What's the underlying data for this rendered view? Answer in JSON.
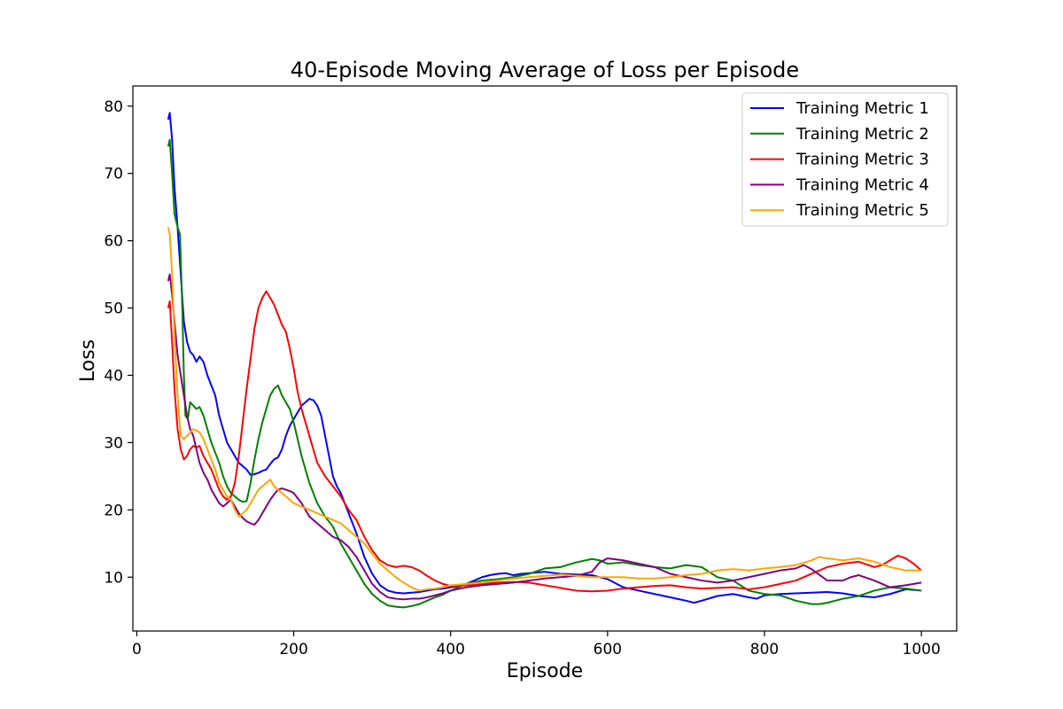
{
  "chart_data": {
    "type": "line",
    "title": "40-Episode Moving Average of Loss per Episode",
    "xlabel": "Episode",
    "ylabel": "Loss",
    "xlim": [
      -5,
      1045
    ],
    "ylim": [
      2,
      83
    ],
    "x_ticks": [
      0,
      200,
      400,
      600,
      800,
      1000
    ],
    "y_ticks": [
      10,
      20,
      30,
      40,
      50,
      60,
      70,
      80
    ],
    "grid": false,
    "legend_position": "top-right",
    "series": [
      {
        "name": "Training Metric 1",
        "color": "#0000ff",
        "x": [
          40,
          42,
          45,
          48,
          52,
          56,
          60,
          64,
          68,
          72,
          76,
          80,
          85,
          90,
          95,
          100,
          105,
          110,
          115,
          120,
          125,
          130,
          135,
          140,
          145,
          150,
          155,
          160,
          165,
          170,
          175,
          180,
          185,
          190,
          195,
          200,
          205,
          210,
          215,
          220,
          225,
          230,
          235,
          240,
          245,
          250,
          255,
          260,
          265,
          270,
          280,
          290,
          300,
          310,
          320,
          330,
          340,
          350,
          360,
          370,
          380,
          390,
          400,
          410,
          420,
          430,
          440,
          450,
          460,
          470,
          480,
          490,
          500,
          520,
          540,
          560,
          580,
          600,
          620,
          640,
          660,
          680,
          700,
          710,
          720,
          740,
          760,
          780,
          790,
          800,
          820,
          840,
          860,
          880,
          900,
          920,
          940,
          960,
          980,
          1000
        ],
        "values": [
          78,
          79,
          75,
          68,
          62,
          55,
          48,
          45,
          43.5,
          43,
          42,
          42.8,
          42,
          40,
          38.5,
          37,
          34,
          32,
          30,
          29,
          28,
          27,
          26.5,
          26,
          25.2,
          25.3,
          25.5,
          25.8,
          26,
          26.8,
          27.5,
          27.8,
          29,
          31,
          32.5,
          33.5,
          34.5,
          35.5,
          36,
          36.5,
          36.3,
          35.5,
          34,
          31,
          28,
          25,
          23.5,
          22.5,
          21,
          19.5,
          16.5,
          13,
          10.5,
          8.8,
          8,
          7.7,
          7.6,
          7.7,
          7.8,
          8,
          8.2,
          8.3,
          8.5,
          8.7,
          9,
          9.5,
          10,
          10.3,
          10.5,
          10.6,
          10.3,
          10.5,
          10.6,
          10.8,
          10.5,
          10.4,
          10.3,
          9.7,
          8.5,
          8,
          7.5,
          7,
          6.5,
          6.2,
          6.5,
          7.2,
          7.5,
          7,
          6.8,
          7.3,
          7.5,
          7.6,
          7.7,
          7.8,
          7.6,
          7.2,
          7,
          7.5,
          8.2,
          8
        ]
      },
      {
        "name": "Training Metric 2",
        "color": "#008000",
        "x": [
          40,
          42,
          45,
          48,
          52,
          55,
          58,
          60,
          62,
          65,
          68,
          72,
          76,
          80,
          85,
          90,
          95,
          100,
          105,
          110,
          115,
          120,
          125,
          130,
          135,
          140,
          145,
          150,
          155,
          160,
          165,
          170,
          175,
          180,
          185,
          190,
          195,
          200,
          210,
          220,
          230,
          240,
          250,
          260,
          270,
          280,
          290,
          300,
          310,
          320,
          330,
          340,
          350,
          360,
          370,
          380,
          390,
          400,
          420,
          440,
          460,
          480,
          500,
          520,
          540,
          560,
          580,
          590,
          600,
          620,
          640,
          660,
          680,
          700,
          720,
          740,
          760,
          780,
          800,
          820,
          840,
          860,
          870,
          880,
          900,
          920,
          940,
          960,
          980,
          1000
        ],
        "values": [
          74,
          75,
          70,
          64,
          62,
          61,
          50,
          40,
          34,
          33.5,
          36,
          35.5,
          35,
          35.3,
          34,
          32,
          30,
          28.5,
          27,
          25,
          23.5,
          22.5,
          22,
          21.5,
          21.2,
          21.3,
          24,
          27.5,
          30.5,
          33,
          35,
          37,
          38,
          38.5,
          37,
          36,
          35,
          33,
          28,
          24,
          21,
          19,
          17.5,
          15,
          13,
          11,
          9,
          7.5,
          6.5,
          5.8,
          5.6,
          5.5,
          5.7,
          6,
          6.5,
          7,
          7.4,
          8,
          9,
          9.5,
          9.7,
          10,
          10.5,
          11.3,
          11.5,
          12.2,
          12.7,
          12.5,
          12,
          12.2,
          11.8,
          11.5,
          11.3,
          11.8,
          11.5,
          10,
          9.5,
          8,
          7.5,
          7.3,
          6.5,
          6,
          6,
          6.2,
          6.8,
          7.2,
          8,
          8.5,
          8.3,
          8
        ]
      },
      {
        "name": "Training Metric 3",
        "color": "#ff0000",
        "x": [
          40,
          42,
          45,
          48,
          52,
          56,
          60,
          64,
          68,
          72,
          76,
          80,
          85,
          90,
          95,
          100,
          105,
          110,
          115,
          120,
          125,
          130,
          135,
          140,
          145,
          150,
          155,
          160,
          165,
          170,
          175,
          180,
          185,
          190,
          195,
          200,
          205,
          210,
          220,
          230,
          240,
          250,
          260,
          270,
          280,
          290,
          300,
          310,
          320,
          330,
          340,
          350,
          360,
          370,
          380,
          390,
          400,
          420,
          440,
          460,
          480,
          500,
          520,
          540,
          560,
          580,
          600,
          620,
          640,
          660,
          680,
          700,
          720,
          740,
          760,
          780,
          800,
          820,
          840,
          860,
          880,
          900,
          920,
          940,
          950,
          960,
          970,
          980,
          990,
          1000
        ],
        "values": [
          50,
          51,
          45,
          38,
          32,
          29,
          27.5,
          28,
          29,
          29.5,
          29.3,
          29.5,
          28,
          27,
          26,
          24.5,
          23,
          22,
          21.5,
          22,
          24,
          28,
          33,
          38,
          42.5,
          47,
          50,
          51.5,
          52.5,
          51.5,
          50.5,
          49,
          47.5,
          46.5,
          44,
          41,
          37.5,
          35,
          31,
          27,
          25,
          23.5,
          22,
          20,
          18.5,
          16,
          14,
          12.5,
          11.8,
          11.5,
          11.7,
          11.5,
          11,
          10.2,
          9.5,
          9,
          8.7,
          8.8,
          9,
          9.2,
          9.3,
          9.2,
          8.8,
          8.4,
          8,
          7.9,
          8,
          8.3,
          8.5,
          8.7,
          8.8,
          8.5,
          8.3,
          8.4,
          8.5,
          8.2,
          8.5,
          9,
          9.5,
          10.5,
          11.5,
          12,
          12.3,
          11.5,
          11.8,
          12.5,
          13.2,
          12.8,
          12,
          11
        ]
      },
      {
        "name": "Training Metric 4",
        "color": "#800080",
        "x": [
          40,
          42,
          45,
          48,
          52,
          56,
          60,
          64,
          68,
          72,
          76,
          80,
          85,
          90,
          95,
          100,
          105,
          110,
          115,
          120,
          125,
          130,
          135,
          140,
          145,
          150,
          155,
          160,
          165,
          170,
          175,
          180,
          185,
          190,
          195,
          200,
          210,
          220,
          230,
          240,
          250,
          260,
          270,
          280,
          290,
          300,
          310,
          320,
          330,
          340,
          350,
          360,
          370,
          380,
          390,
          400,
          420,
          440,
          460,
          480,
          500,
          520,
          540,
          560,
          580,
          590,
          600,
          620,
          640,
          660,
          680,
          700,
          720,
          740,
          760,
          780,
          800,
          820,
          840,
          850,
          860,
          880,
          900,
          910,
          920,
          940,
          960,
          980,
          1000
        ],
        "values": [
          54,
          55,
          52,
          48,
          43,
          40,
          37,
          34,
          32,
          31,
          29,
          27,
          25.5,
          24.5,
          23,
          22,
          21,
          20.5,
          21,
          21.5,
          20.5,
          19.5,
          18.8,
          18.3,
          18,
          17.8,
          18.5,
          19.5,
          20.5,
          21.5,
          22.3,
          23,
          23.2,
          23,
          22.8,
          22.5,
          21,
          19,
          18,
          17,
          16,
          15.5,
          14.5,
          13,
          11,
          9,
          7.8,
          7,
          6.8,
          6.7,
          6.8,
          6.8,
          7,
          7.3,
          7.6,
          8,
          8.5,
          8.8,
          9,
          9.2,
          9.5,
          9.8,
          10,
          10.2,
          10.8,
          12.2,
          12.8,
          12.5,
          12,
          11.5,
          10.5,
          10,
          9.5,
          9.2,
          9.5,
          10,
          10.5,
          11,
          11.3,
          11.8,
          11.2,
          9.5,
          9.5,
          10,
          10.3,
          9.5,
          8.5,
          8.8,
          9.2
        ]
      },
      {
        "name": "Training Metric 5",
        "color": "#ffa500",
        "x": [
          40,
          42,
          45,
          48,
          52,
          56,
          60,
          64,
          68,
          72,
          76,
          80,
          85,
          90,
          95,
          100,
          105,
          110,
          115,
          120,
          125,
          130,
          135,
          140,
          145,
          150,
          155,
          160,
          165,
          170,
          175,
          180,
          190,
          200,
          210,
          220,
          230,
          240,
          250,
          260,
          270,
          280,
          290,
          300,
          310,
          320,
          330,
          340,
          350,
          360,
          370,
          380,
          390,
          400,
          420,
          440,
          460,
          480,
          500,
          520,
          540,
          560,
          580,
          600,
          620,
          640,
          660,
          680,
          700,
          720,
          740,
          760,
          780,
          800,
          820,
          840,
          860,
          870,
          880,
          900,
          920,
          940,
          960,
          980,
          1000
        ],
        "values": [
          62,
          61,
          55,
          46,
          37,
          31,
          30.5,
          31,
          31.5,
          32,
          31.8,
          31.5,
          30.5,
          29,
          27.5,
          26,
          24,
          23,
          22,
          21.5,
          20,
          19,
          19.5,
          20,
          21,
          22,
          23,
          23.5,
          24,
          24.5,
          23.5,
          23,
          22,
          21,
          20.5,
          20,
          19.5,
          19,
          18.5,
          18,
          17,
          16,
          15,
          13.5,
          12,
          11,
          10,
          9.2,
          8.5,
          8,
          8.2,
          8.3,
          8.5,
          8.8,
          9,
          9.2,
          9.5,
          9.8,
          10,
          10.2,
          10.4,
          10.2,
          10,
          10,
          10,
          9.8,
          9.8,
          10,
          10.3,
          10.5,
          11,
          11.2,
          11,
          11.3,
          11.5,
          11.8,
          12.5,
          13,
          12.8,
          12.5,
          12.8,
          12.3,
          11.5,
          11,
          11
        ]
      }
    ]
  }
}
